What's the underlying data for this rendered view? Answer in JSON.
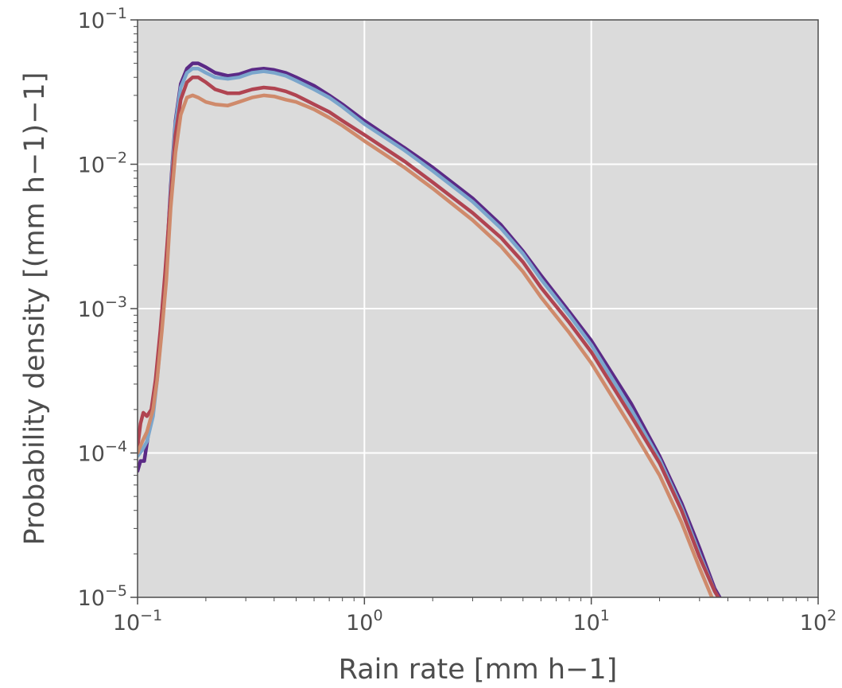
{
  "chart_data": {
    "type": "line",
    "title": "",
    "xlabel": "Rain rate [mm h−1]",
    "ylabel": "Probability density [(mm h−1)−1]",
    "xscale": "log",
    "yscale": "log",
    "xlim": [
      0.1,
      100
    ],
    "ylim": [
      1e-05,
      0.1
    ],
    "grid": true,
    "background_color": "#dbdbdb",
    "grid_color": "#ffffff",
    "x_ticks": [
      {
        "base": "10",
        "exp": "−1"
      },
      {
        "base": "10",
        "exp": "0"
      },
      {
        "base": "10",
        "exp": "1"
      },
      {
        "base": "10",
        "exp": "2"
      }
    ],
    "y_ticks": [
      {
        "base": "10",
        "exp": "−5"
      },
      {
        "base": "10",
        "exp": "−4"
      },
      {
        "base": "10",
        "exp": "−3"
      },
      {
        "base": "10",
        "exp": "−2"
      },
      {
        "base": "10",
        "exp": "−1"
      }
    ],
    "series": [
      {
        "color": "#5b2a86",
        "points": [
          [
            0.1,
            7.5e-05
          ],
          [
            0.103,
            8.8e-05
          ],
          [
            0.107,
            8.8e-05
          ],
          [
            0.112,
            0.00014
          ],
          [
            0.117,
            0.0002
          ],
          [
            0.122,
            0.00035
          ],
          [
            0.128,
            0.0008
          ],
          [
            0.134,
            0.002
          ],
          [
            0.14,
            0.007
          ],
          [
            0.147,
            0.02
          ],
          [
            0.155,
            0.036
          ],
          [
            0.165,
            0.046
          ],
          [
            0.175,
            0.05
          ],
          [
            0.185,
            0.05
          ],
          [
            0.2,
            0.047
          ],
          [
            0.22,
            0.043
          ],
          [
            0.25,
            0.041
          ],
          [
            0.28,
            0.042
          ],
          [
            0.32,
            0.045
          ],
          [
            0.36,
            0.046
          ],
          [
            0.4,
            0.045
          ],
          [
            0.45,
            0.043
          ],
          [
            0.5,
            0.04
          ],
          [
            0.6,
            0.035
          ],
          [
            0.7,
            0.03
          ],
          [
            0.8,
            0.026
          ],
          [
            1.0,
            0.02
          ],
          [
            1.5,
            0.013
          ],
          [
            2.0,
            0.0095
          ],
          [
            3.0,
            0.0058
          ],
          [
            4.0,
            0.0038
          ],
          [
            5.0,
            0.0025
          ],
          [
            6.0,
            0.0017
          ],
          [
            8.0,
            0.00095
          ],
          [
            10.0,
            0.0006
          ],
          [
            15.0,
            0.00022
          ],
          [
            20.0,
            9.5e-05
          ],
          [
            25.0,
            4.5e-05
          ],
          [
            30.0,
            2.2e-05
          ],
          [
            35.0,
            1.15e-05
          ],
          [
            37.5,
            9.5e-06
          ]
        ]
      },
      {
        "color": "#7ba6cc",
        "points": [
          [
            0.1,
            9.5e-05
          ],
          [
            0.105,
            0.000105
          ],
          [
            0.11,
            0.00012
          ],
          [
            0.117,
            0.00018
          ],
          [
            0.122,
            0.00032
          ],
          [
            0.128,
            0.00075
          ],
          [
            0.134,
            0.0019
          ],
          [
            0.14,
            0.0065
          ],
          [
            0.147,
            0.019
          ],
          [
            0.155,
            0.034
          ],
          [
            0.165,
            0.043
          ],
          [
            0.175,
            0.046
          ],
          [
            0.185,
            0.046
          ],
          [
            0.2,
            0.043
          ],
          [
            0.22,
            0.04
          ],
          [
            0.25,
            0.039
          ],
          [
            0.28,
            0.04
          ],
          [
            0.32,
            0.043
          ],
          [
            0.36,
            0.044
          ],
          [
            0.4,
            0.043
          ],
          [
            0.45,
            0.041
          ],
          [
            0.5,
            0.038
          ],
          [
            0.6,
            0.033
          ],
          [
            0.7,
            0.029
          ],
          [
            0.8,
            0.025
          ],
          [
            1.0,
            0.019
          ],
          [
            1.5,
            0.0125
          ],
          [
            2.0,
            0.009
          ],
          [
            3.0,
            0.0055
          ],
          [
            4.0,
            0.0036
          ],
          [
            5.0,
            0.0024
          ],
          [
            6.0,
            0.0016
          ],
          [
            8.0,
            0.0009
          ],
          [
            10.0,
            0.00056
          ],
          [
            15.0,
            0.0002
          ],
          [
            20.0,
            9e-05
          ],
          [
            25.0,
            4.2e-05
          ],
          [
            30.0,
            2e-05
          ],
          [
            35.0,
            1.1e-05
          ],
          [
            37.0,
            9.5e-06
          ]
        ]
      },
      {
        "color": "#b04451",
        "points": [
          [
            0.1,
            0.00011
          ],
          [
            0.103,
            0.00016
          ],
          [
            0.106,
            0.00019
          ],
          [
            0.11,
            0.00018
          ],
          [
            0.115,
            0.0002
          ],
          [
            0.12,
            0.00032
          ],
          [
            0.126,
            0.0007
          ],
          [
            0.132,
            0.0017
          ],
          [
            0.14,
            0.006
          ],
          [
            0.147,
            0.016
          ],
          [
            0.155,
            0.028
          ],
          [
            0.165,
            0.037
          ],
          [
            0.175,
            0.04
          ],
          [
            0.185,
            0.04
          ],
          [
            0.2,
            0.037
          ],
          [
            0.22,
            0.033
          ],
          [
            0.25,
            0.031
          ],
          [
            0.28,
            0.031
          ],
          [
            0.32,
            0.033
          ],
          [
            0.36,
            0.034
          ],
          [
            0.4,
            0.0335
          ],
          [
            0.45,
            0.032
          ],
          [
            0.5,
            0.03
          ],
          [
            0.6,
            0.026
          ],
          [
            0.7,
            0.023
          ],
          [
            0.8,
            0.02
          ],
          [
            1.0,
            0.016
          ],
          [
            1.5,
            0.0105
          ],
          [
            2.0,
            0.0075
          ],
          [
            3.0,
            0.0046
          ],
          [
            4.0,
            0.0031
          ],
          [
            5.0,
            0.0021
          ],
          [
            6.0,
            0.0014
          ],
          [
            8.0,
            0.0008
          ],
          [
            10.0,
            0.0005
          ],
          [
            15.0,
            0.00018
          ],
          [
            20.0,
            8.5e-05
          ],
          [
            25.0,
            4e-05
          ],
          [
            30.0,
            1.9e-05
          ],
          [
            35.0,
            1.1e-05
          ],
          [
            37.0,
            9.5e-06
          ]
        ]
      },
      {
        "color": "#cf8a6b",
        "points": [
          [
            0.1,
            0.0001
          ],
          [
            0.105,
            0.00012
          ],
          [
            0.11,
            0.00014
          ],
          [
            0.117,
            0.0002
          ],
          [
            0.122,
            0.00032
          ],
          [
            0.128,
            0.0007
          ],
          [
            0.134,
            0.0016
          ],
          [
            0.14,
            0.005
          ],
          [
            0.147,
            0.012
          ],
          [
            0.155,
            0.022
          ],
          [
            0.165,
            0.029
          ],
          [
            0.175,
            0.03
          ],
          [
            0.185,
            0.029
          ],
          [
            0.2,
            0.027
          ],
          [
            0.22,
            0.026
          ],
          [
            0.25,
            0.0255
          ],
          [
            0.28,
            0.027
          ],
          [
            0.32,
            0.029
          ],
          [
            0.36,
            0.03
          ],
          [
            0.4,
            0.0295
          ],
          [
            0.45,
            0.028
          ],
          [
            0.5,
            0.027
          ],
          [
            0.6,
            0.024
          ],
          [
            0.7,
            0.021
          ],
          [
            0.8,
            0.0185
          ],
          [
            1.0,
            0.0145
          ],
          [
            1.5,
            0.0095
          ],
          [
            2.0,
            0.0068
          ],
          [
            3.0,
            0.0041
          ],
          [
            4.0,
            0.0027
          ],
          [
            5.0,
            0.0018
          ],
          [
            6.0,
            0.0012
          ],
          [
            8.0,
            0.00068
          ],
          [
            10.0,
            0.00042
          ],
          [
            15.0,
            0.00015
          ],
          [
            20.0,
            7e-05
          ],
          [
            25.0,
            3.3e-05
          ],
          [
            30.0,
            1.6e-05
          ],
          [
            34.0,
            1e-05
          ],
          [
            35.0,
            9.5e-06
          ]
        ]
      }
    ]
  }
}
